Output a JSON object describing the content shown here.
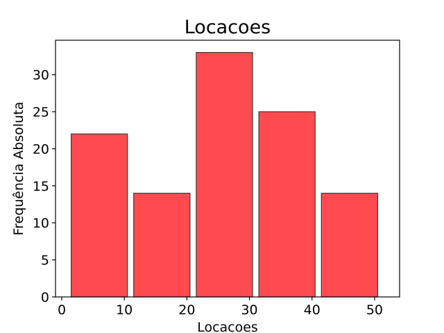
{
  "chart_data": {
    "type": "bar",
    "title": "Locacoes",
    "xlabel": "Locacoes",
    "ylabel": "Frequência Absoluta",
    "bins": [
      {
        "start": 1.5,
        "end": 10.5,
        "value": 22
      },
      {
        "start": 11.5,
        "end": 20.5,
        "value": 14
      },
      {
        "start": 21.5,
        "end": 30.5,
        "value": 33
      },
      {
        "start": 31.5,
        "end": 40.5,
        "value": 25
      },
      {
        "start": 41.5,
        "end": 50.5,
        "value": 14
      }
    ],
    "values": [
      22,
      14,
      33,
      25,
      14
    ],
    "xlim": [
      -1,
      54
    ],
    "ylim": [
      0,
      34.65
    ],
    "xticks": [
      0,
      10,
      20,
      30,
      40,
      50
    ],
    "yticks": [
      0,
      5,
      10,
      15,
      20,
      25,
      30
    ],
    "grid": false,
    "colors": {
      "bar_fill": "#ff4b4f",
      "bar_edge": "#3a3a3a"
    }
  }
}
